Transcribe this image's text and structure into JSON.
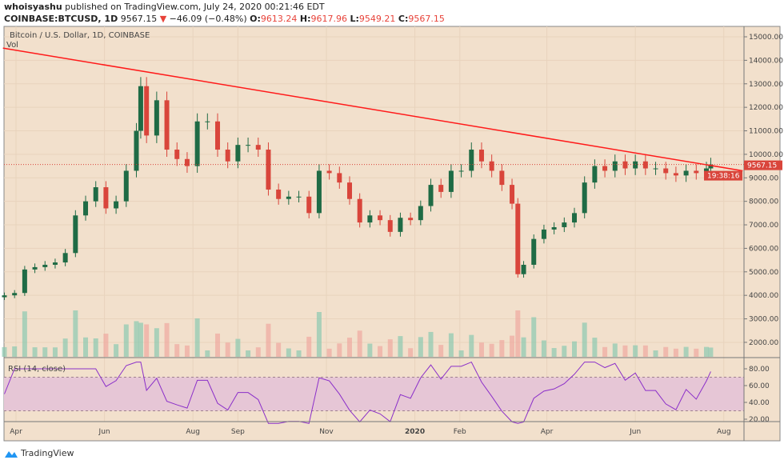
{
  "header": {
    "author": "whoisyashu",
    "published_text": "published on TradingView.com, July 24, 2020 00:21:46 EDT",
    "symbol": "COINBASE:BTCUSD, 1D",
    "last": "9567.15",
    "change": "−46.09 (−0.48%)",
    "o_label": "O:",
    "o": "9613.24",
    "h_label": "H:",
    "h": "9617.96",
    "l_label": "L:",
    "l": "9549.21",
    "c_label": "C:",
    "c": "9567.15"
  },
  "footer": {
    "brand": "TradingView"
  },
  "colors": {
    "background": "#f2e0cc",
    "up": "#1f6b45",
    "down": "#d9453b",
    "trendline": "#ff1a1a",
    "rsi": "#8b2fc9",
    "rsi_band": "#e6c6d6",
    "label_bg": "#d9453b"
  },
  "chart_data": {
    "type": "candlestick",
    "title": "Bitcoin / U.S. Dollar, 1D, COINBASE",
    "volume_label": "Vol",
    "ylim": [
      1500,
      15500
    ],
    "y_ticks": [
      "15000.00",
      "14000.00",
      "13000.00",
      "12000.00",
      "11000.00",
      "10000.00",
      "9000.00",
      "8000.00",
      "7000.00",
      "6000.00",
      "5000.00",
      "4000.00",
      "3000.00",
      "2000.00"
    ],
    "x_ticks": [
      {
        "label": "Apr",
        "date": "2019-04-01"
      },
      {
        "label": "Jun",
        "date": "2019-06-01"
      },
      {
        "label": "Aug",
        "date": "2019-08-01"
      },
      {
        "label": "Sep",
        "date": "2019-09-01"
      },
      {
        "label": "Nov",
        "date": "2019-11-01"
      },
      {
        "label": "2020",
        "date": "2020-01-01"
      },
      {
        "label": "Feb",
        "date": "2020-02-01"
      },
      {
        "label": "Apr",
        "date": "2020-04-01"
      },
      {
        "label": "Jun",
        "date": "2020-06-01"
      },
      {
        "label": "Aug",
        "date": "2020-08-01"
      }
    ],
    "last_price_label": "9567.15",
    "countdown_label": "19:38:16",
    "last_price": 9567.15,
    "trendline": [
      {
        "date": "2019-03-23",
        "price": 14520
      },
      {
        "date": "2020-08-14",
        "price": 9300
      }
    ],
    "closes": [
      [
        "2019-03-24",
        4000
      ],
      [
        "2019-03-31",
        4100
      ],
      [
        "2019-04-07",
        5100
      ],
      [
        "2019-04-14",
        5200
      ],
      [
        "2019-04-21",
        5300
      ],
      [
        "2019-04-28",
        5400
      ],
      [
        "2019-05-05",
        5800
      ],
      [
        "2019-05-12",
        7400
      ],
      [
        "2019-05-19",
        8000
      ],
      [
        "2019-05-26",
        8600
      ],
      [
        "2019-06-02",
        7700
      ],
      [
        "2019-06-09",
        8000
      ],
      [
        "2019-06-16",
        9300
      ],
      [
        "2019-06-23",
        11000
      ],
      [
        "2019-06-26",
        12900
      ],
      [
        "2019-06-30",
        10800
      ],
      [
        "2019-07-07",
        12300
      ],
      [
        "2019-07-14",
        10200
      ],
      [
        "2019-07-21",
        9800
      ],
      [
        "2019-07-28",
        9500
      ],
      [
        "2019-08-04",
        11400
      ],
      [
        "2019-08-11",
        11400
      ],
      [
        "2019-08-18",
        10200
      ],
      [
        "2019-08-25",
        9700
      ],
      [
        "2019-09-01",
        10400
      ],
      [
        "2019-09-08",
        10400
      ],
      [
        "2019-09-15",
        10200
      ],
      [
        "2019-09-22",
        8500
      ],
      [
        "2019-09-29",
        8100
      ],
      [
        "2019-10-06",
        8200
      ],
      [
        "2019-10-13",
        8200
      ],
      [
        "2019-10-20",
        7500
      ],
      [
        "2019-10-27",
        9300
      ],
      [
        "2019-11-03",
        9200
      ],
      [
        "2019-11-10",
        8800
      ],
      [
        "2019-11-17",
        8100
      ],
      [
        "2019-11-24",
        7100
      ],
      [
        "2019-12-01",
        7400
      ],
      [
        "2019-12-08",
        7200
      ],
      [
        "2019-12-15",
        6700
      ],
      [
        "2019-12-22",
        7300
      ],
      [
        "2019-12-29",
        7200
      ],
      [
        "2020-01-05",
        7800
      ],
      [
        "2020-01-12",
        8700
      ],
      [
        "2020-01-19",
        8400
      ],
      [
        "2020-01-26",
        9300
      ],
      [
        "2020-02-02",
        9300
      ],
      [
        "2020-02-09",
        10200
      ],
      [
        "2020-02-16",
        9700
      ],
      [
        "2020-02-23",
        9300
      ],
      [
        "2020-03-01",
        8700
      ],
      [
        "2020-03-08",
        7900
      ],
      [
        "2020-03-12",
        4900
      ],
      [
        "2020-03-16",
        5300
      ],
      [
        "2020-03-23",
        6400
      ],
      [
        "2020-03-30",
        6800
      ],
      [
        "2020-04-06",
        6900
      ],
      [
        "2020-04-13",
        7100
      ],
      [
        "2020-04-20",
        7500
      ],
      [
        "2020-04-27",
        8800
      ],
      [
        "2020-05-04",
        9500
      ],
      [
        "2020-05-11",
        9300
      ],
      [
        "2020-05-18",
        9700
      ],
      [
        "2020-05-25",
        9400
      ],
      [
        "2020-06-01",
        9700
      ],
      [
        "2020-06-08",
        9400
      ],
      [
        "2020-06-15",
        9400
      ],
      [
        "2020-06-22",
        9200
      ],
      [
        "2020-06-29",
        9100
      ],
      [
        "2020-07-06",
        9300
      ],
      [
        "2020-07-13",
        9200
      ],
      [
        "2020-07-20",
        9400
      ],
      [
        "2020-07-23",
        9567.15
      ]
    ],
    "rsi": {
      "label": "RSI (14, close)",
      "ylim": [
        10,
        90
      ],
      "bands": [
        30,
        70
      ],
      "y_ticks": [
        "80.00",
        "60.00",
        "40.00",
        "20.00"
      ]
    }
  }
}
